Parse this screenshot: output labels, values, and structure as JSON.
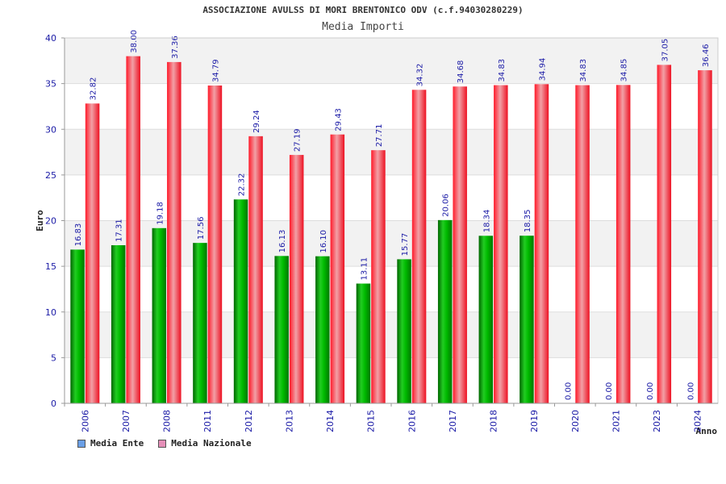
{
  "header": {
    "title": "ASSOCIAZIONE AVULSS DI MORI BRENTONICO ODV (c.f.94030280229)",
    "subtitle": "Media Importi"
  },
  "legend": {
    "items": [
      {
        "label": "Media Ente",
        "color": "#6a9fe6"
      },
      {
        "label": "Media Nazionale",
        "color": "#e58fb8"
      }
    ]
  },
  "chart_data": {
    "type": "bar",
    "title": "ASSOCIAZIONE AVULSS DI MORI BRENTONICO ODV (c.f.94030280229)",
    "subtitle": "Media Importi",
    "xlabel": "Anno",
    "ylabel": "Euro",
    "ylim": [
      0,
      40
    ],
    "yticks": [
      0,
      5,
      10,
      15,
      20,
      25,
      30,
      35,
      40
    ],
    "grid": true,
    "categories": [
      "2006",
      "2007",
      "2008",
      "2011",
      "2012",
      "2013",
      "2014",
      "2015",
      "2016",
      "2017",
      "2018",
      "2019",
      "2020",
      "2021",
      "2023",
      "2024"
    ],
    "series": [
      {
        "name": "Media Ente",
        "color": "#00aa00",
        "values": [
          16.83,
          17.31,
          19.18,
          17.56,
          22.32,
          16.13,
          16.1,
          13.11,
          15.77,
          20.06,
          18.34,
          18.35,
          0.0,
          0.0,
          0.0,
          0.0
        ],
        "labels": [
          "16.83",
          "17.31",
          "19.18",
          "17.56",
          "22.32",
          "16.13",
          "16.10",
          "13.11",
          "15.77",
          "20.06",
          "18.34",
          "18.35",
          "0.00",
          "0.00",
          "0.00",
          "0.00"
        ]
      },
      {
        "name": "Media Nazionale",
        "color": "#ee1122",
        "values": [
          32.82,
          38.0,
          37.36,
          34.79,
          29.24,
          27.19,
          29.43,
          27.71,
          34.32,
          34.68,
          34.83,
          34.94,
          34.83,
          34.85,
          37.05,
          36.46
        ],
        "labels": [
          "32.82",
          "38.00",
          "37.36",
          "34.79",
          "29.24",
          "27.19",
          "29.43",
          "27.71",
          "34.32",
          "34.68",
          "34.83",
          "34.94",
          "34.83",
          "34.85",
          "37.05",
          "36.46"
        ]
      }
    ],
    "legend_position": "bottom-left"
  }
}
